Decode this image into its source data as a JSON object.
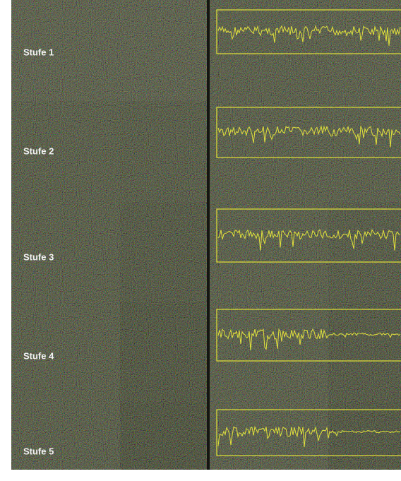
{
  "rows": [
    {
      "label": "Stufe 1"
    },
    {
      "label": "Stufe 2"
    },
    {
      "label": "Stufe 3"
    },
    {
      "label": "Stufe 4"
    },
    {
      "label": "Stufe 5"
    }
  ]
}
